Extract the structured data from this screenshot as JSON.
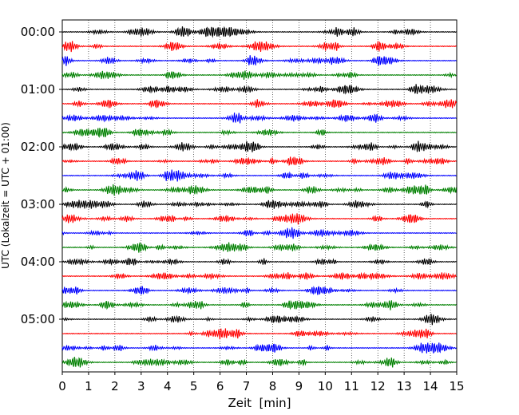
{
  "chart_data": {
    "type": "line",
    "title": "",
    "xlabel": "Zeit  [min]",
    "ylabel": "UTC (Lokalzeit = UTC + 01:00)",
    "xlim": [
      0,
      15
    ],
    "x_ticks": [
      "0",
      "1",
      "2",
      "3",
      "4",
      "5",
      "6",
      "7",
      "8",
      "9",
      "10",
      "11",
      "12",
      "13",
      "14",
      "15"
    ],
    "y_ticks": [
      "00:00",
      "01:00",
      "02:00",
      "03:00",
      "04:00",
      "05:00"
    ],
    "grid": "vertical dotted lines at each minute",
    "trace_count": 24,
    "trace_interval_minutes": 15,
    "trace_color_cycle": [
      "#000000",
      "#ff0000",
      "#0000ff",
      "#008000"
    ],
    "legend": "none"
  }
}
